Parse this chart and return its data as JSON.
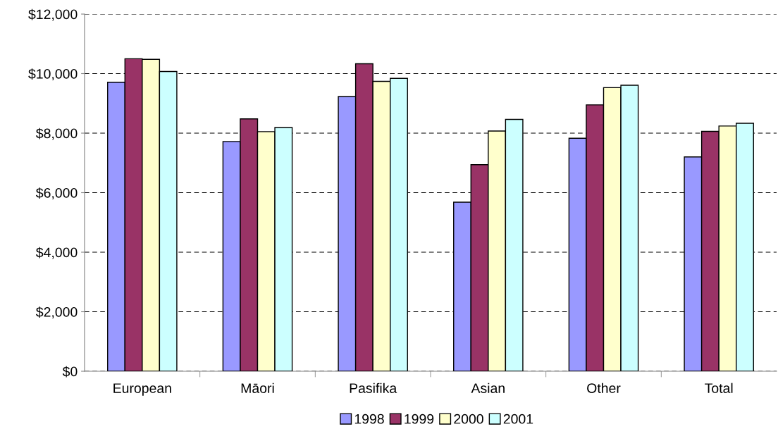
{
  "chart_data": {
    "type": "bar",
    "categories": [
      "European",
      "Māori",
      "Pasifika",
      "Asian",
      "Other",
      "Total"
    ],
    "series": [
      {
        "name": "1998",
        "color": "#9999ff",
        "values": [
          9710,
          7720,
          9230,
          5680,
          7830,
          7200
        ]
      },
      {
        "name": "1999",
        "color": "#993366",
        "values": [
          10500,
          8480,
          10330,
          6940,
          8950,
          8060
        ]
      },
      {
        "name": "2000",
        "color": "#ffffcc",
        "values": [
          10480,
          8050,
          9740,
          8070,
          9530,
          8240
        ]
      },
      {
        "name": "2001",
        "color": "#ccffff",
        "values": [
          10070,
          8190,
          9840,
          8460,
          9610,
          8330
        ]
      }
    ],
    "ylim": [
      0,
      12000
    ],
    "yticks": [
      {
        "value": 0,
        "label": "$0"
      },
      {
        "value": 2000,
        "label": "$2,000"
      },
      {
        "value": 4000,
        "label": "$4,000"
      },
      {
        "value": 6000,
        "label": "$6,000"
      },
      {
        "value": 8000,
        "label": "$8,000"
      },
      {
        "value": 10000,
        "label": "$10,000"
      },
      {
        "value": 12000,
        "label": "$12,000"
      }
    ],
    "grid": "y",
    "legend": "bottom"
  }
}
